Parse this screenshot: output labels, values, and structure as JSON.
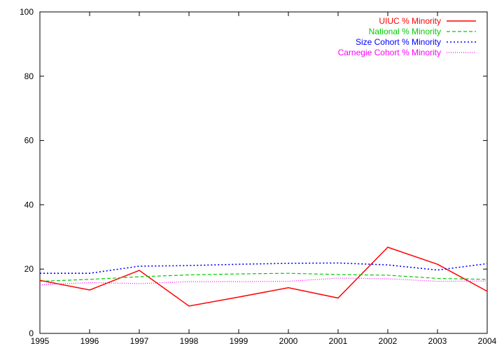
{
  "chart_data": {
    "type": "line",
    "title": "",
    "xlabel": "",
    "ylabel": "",
    "x": [
      1995,
      1996,
      1997,
      1998,
      1999,
      2000,
      2001,
      2002,
      2003,
      2004
    ],
    "xlim": [
      1995,
      2004
    ],
    "ylim": [
      0,
      100
    ],
    "x_ticks": [
      "1995",
      "1996",
      "1997",
      "1998",
      "1999",
      "2000",
      "2001",
      "2002",
      "2003",
      "2004"
    ],
    "y_ticks": [
      "0",
      "20",
      "40",
      "60",
      "80",
      "100"
    ],
    "grid": false,
    "legend_position": "top-right",
    "series": [
      {
        "name": "UIUC % Minority",
        "color": "#ff0000",
        "dash": "solid",
        "values": [
          16.5,
          13.5,
          19.6,
          8.5,
          11.3,
          14.2,
          11.0,
          26.8,
          21.5,
          13.1
        ]
      },
      {
        "name": "National % Minority",
        "color": "#00cc00",
        "dash": "dashed",
        "values": [
          16.2,
          16.8,
          17.6,
          18.2,
          18.5,
          18.7,
          18.3,
          18.1,
          17.1,
          16.8
        ]
      },
      {
        "name": "Size Cohort % Minority",
        "color": "#0000ff",
        "dash": "dotted",
        "values": [
          18.7,
          18.7,
          20.9,
          21.1,
          21.5,
          21.8,
          21.9,
          21.3,
          19.7,
          21.7
        ]
      },
      {
        "name": "Carnegie Cohort % Minority",
        "color": "#ff00ff",
        "dash": "fine-dotted",
        "values": [
          15.1,
          15.8,
          15.5,
          16.1,
          16.1,
          16.2,
          17.2,
          17.0,
          16.2,
          16.3
        ]
      }
    ]
  }
}
